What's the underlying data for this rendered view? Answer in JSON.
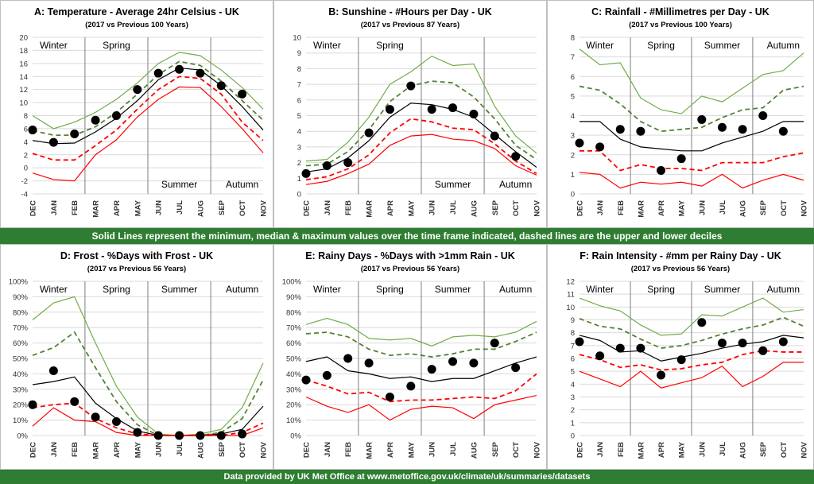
{
  "footer_note": "Solid Lines represent the minimum, median & maximum values over the time frame indicated, dashed lines are the upper and lower deciles",
  "source_note": "Data provided by UK Met Office at www.metoffice.gov.uk/climate/uk/summaries/datasets",
  "colors": {
    "max": "#70ad47",
    "upper_decile": "#548235",
    "median": "#000000",
    "lower_decile": "#ff0000",
    "min": "#ff0000",
    "current": "#000000",
    "banner": "#2e7d32"
  },
  "chart_data": [
    {
      "id": "A",
      "type": "line",
      "title": "A: Temperature - Average 24hr Celsius - UK",
      "subtitle": "(2017 vs Previous 100 Years)",
      "categories": [
        "DEC",
        "JAN",
        "FEB",
        "MAR",
        "APR",
        "MAY",
        "JUN",
        "JUL",
        "AUG",
        "SEP",
        "OCT",
        "NOV"
      ],
      "ylim": [
        -4,
        20
      ],
      "yticks": [
        -4,
        -2,
        0,
        2,
        4,
        6,
        8,
        10,
        12,
        14,
        16,
        18,
        20
      ],
      "season_labels": [
        {
          "text": "Winter",
          "pos": "top"
        },
        {
          "text": "Spring",
          "pos": "top"
        },
        {
          "text": "Summer",
          "pos": "bottom"
        },
        {
          "text": "Autumn",
          "pos": "bottom"
        }
      ],
      "series": {
        "max": [
          8.0,
          6.0,
          7.0,
          8.5,
          10.5,
          13.0,
          16.0,
          17.7,
          17.2,
          15.0,
          12.3,
          9.0
        ],
        "upper_decile": [
          5.7,
          5.0,
          5.0,
          6.3,
          8.5,
          11.3,
          14.3,
          16.3,
          15.7,
          13.3,
          10.3,
          7.3
        ],
        "median": [
          4.2,
          3.7,
          3.8,
          5.5,
          7.6,
          10.3,
          13.5,
          15.3,
          15.0,
          12.6,
          9.4,
          5.8
        ],
        "lower_decile": [
          2.2,
          1.2,
          1.2,
          3.4,
          5.8,
          9.0,
          12.0,
          14.0,
          13.7,
          11.3,
          7.0,
          4.2
        ],
        "min": [
          -0.8,
          -1.8,
          -2.0,
          2.0,
          4.3,
          7.8,
          10.5,
          12.4,
          12.3,
          9.4,
          6.0,
          2.3
        ],
        "current": [
          5.8,
          3.9,
          5.2,
          7.3,
          8.0,
          12.0,
          14.5,
          15.1,
          14.5,
          12.6,
          11.3,
          null
        ]
      }
    },
    {
      "id": "B",
      "type": "line",
      "title": "B: Sunshine - #Hours per Day - UK",
      "subtitle": "(2017 vs Previous 87 Years)",
      "categories": [
        "DEC",
        "JAN",
        "FEB",
        "MAR",
        "APR",
        "MAY",
        "JUN",
        "JUL",
        "AUG",
        "SEP",
        "OCT",
        "NOV"
      ],
      "ylim": [
        0,
        10
      ],
      "yticks": [
        0,
        1,
        2,
        3,
        4,
        5,
        6,
        7,
        8,
        9,
        10
      ],
      "season_labels": [
        {
          "text": "Winter",
          "pos": "top"
        },
        {
          "text": "Spring",
          "pos": "top"
        },
        {
          "text": "Summer",
          "pos": "bottom"
        },
        {
          "text": "Autumn",
          "pos": "bottom"
        }
      ],
      "series": {
        "max": [
          2.1,
          2.2,
          3.3,
          4.9,
          7.0,
          7.8,
          8.8,
          8.2,
          8.3,
          5.6,
          3.7,
          2.6
        ],
        "upper_decile": [
          1.8,
          1.9,
          2.7,
          4.1,
          5.9,
          6.9,
          7.2,
          7.1,
          6.2,
          4.8,
          3.1,
          2.2
        ],
        "median": [
          1.4,
          1.6,
          2.3,
          3.4,
          4.9,
          5.8,
          5.7,
          5.4,
          4.9,
          3.8,
          2.7,
          1.7
        ],
        "lower_decile": [
          0.9,
          1.1,
          1.6,
          2.5,
          3.9,
          4.8,
          4.6,
          4.2,
          4.1,
          3.2,
          2.1,
          1.3
        ],
        "min": [
          0.6,
          0.8,
          1.3,
          1.9,
          3.1,
          3.7,
          3.8,
          3.5,
          3.4,
          2.9,
          1.8,
          1.2
        ],
        "current": [
          1.3,
          1.8,
          2.0,
          3.9,
          5.4,
          6.9,
          5.4,
          5.5,
          5.1,
          3.7,
          2.4,
          null
        ]
      }
    },
    {
      "id": "C",
      "type": "line",
      "title": "C: Rainfall - #Millimetres per Day - UK",
      "subtitle": "(2017 vs Previous 100 Years)",
      "categories": [
        "DEC",
        "JAN",
        "FEB",
        "MAR",
        "APR",
        "MAY",
        "JUN",
        "JUL",
        "AUG",
        "SEP",
        "OCT",
        "NOV"
      ],
      "ylim": [
        0,
        8
      ],
      "yticks": [
        0,
        1,
        2,
        3,
        4,
        5,
        6,
        7,
        8
      ],
      "season_labels": [
        {
          "text": "Winter",
          "pos": "top"
        },
        {
          "text": "Spring",
          "pos": "top"
        },
        {
          "text": "Summer",
          "pos": "top"
        },
        {
          "text": "Autumn",
          "pos": "top"
        }
      ],
      "series": {
        "max": [
          7.4,
          6.6,
          6.7,
          4.9,
          4.3,
          4.1,
          5.0,
          4.7,
          5.4,
          6.1,
          6.3,
          7.2
        ],
        "upper_decile": [
          5.5,
          5.3,
          4.6,
          3.7,
          3.2,
          3.3,
          3.4,
          3.9,
          4.3,
          4.4,
          5.3,
          5.5
        ],
        "median": [
          3.7,
          3.7,
          2.8,
          2.4,
          2.3,
          2.2,
          2.2,
          2.6,
          2.9,
          3.2,
          3.7,
          3.7
        ],
        "lower_decile": [
          2.2,
          2.2,
          1.2,
          1.5,
          1.3,
          1.3,
          1.2,
          1.6,
          1.6,
          1.6,
          1.9,
          2.1
        ],
        "min": [
          1.1,
          1.0,
          0.3,
          0.6,
          0.5,
          0.6,
          0.4,
          1.0,
          0.3,
          0.7,
          1.0,
          0.7
        ],
        "current": [
          2.6,
          2.4,
          3.3,
          3.2,
          1.2,
          1.8,
          3.8,
          3.4,
          3.3,
          4.0,
          3.2,
          null
        ]
      }
    },
    {
      "id": "D",
      "type": "line",
      "title": "D: Frost - %Days with Frost - UK",
      "subtitle": "(2017 vs Previous 56 Years)",
      "categories": [
        "DEC",
        "JAN",
        "FEB",
        "MAR",
        "APR",
        "MAY",
        "JUN",
        "JUL",
        "AUG",
        "SEP",
        "OCT",
        "NOV"
      ],
      "ylim": [
        0,
        100
      ],
      "ytick_suffix": "%",
      "yticks": [
        0,
        10,
        20,
        30,
        40,
        50,
        60,
        70,
        80,
        90,
        100
      ],
      "season_labels": [
        {
          "text": "Winter",
          "pos": "top"
        },
        {
          "text": "Spring",
          "pos": "top"
        },
        {
          "text": "Summer",
          "pos": "top"
        },
        {
          "text": "Autumn",
          "pos": "top"
        }
      ],
      "series": {
        "max": [
          75,
          86,
          90,
          60,
          32,
          12,
          1,
          0,
          1,
          4,
          18,
          47
        ],
        "upper_decile": [
          52,
          57,
          67,
          44,
          22,
          7,
          0,
          0,
          0,
          2,
          11,
          36
        ],
        "median": [
          33,
          35,
          38,
          21,
          11,
          3,
          0,
          0,
          0,
          1,
          4,
          19
        ],
        "lower_decile": [
          18,
          20,
          21,
          11,
          5,
          1,
          0,
          0,
          0,
          0,
          2,
          8
        ],
        "min": [
          6,
          18,
          10,
          9,
          2,
          0,
          0,
          0,
          0,
          0,
          0,
          5
        ],
        "current": [
          20,
          42,
          22,
          12,
          9,
          2,
          0,
          0,
          0,
          0,
          1,
          null
        ]
      }
    },
    {
      "id": "E",
      "type": "line",
      "title": "E: Rainy Days - %Days with >1mm Rain - UK",
      "subtitle": "(2017 vs Previous 56 Years)",
      "categories": [
        "DEC",
        "JAN",
        "FEB",
        "MAR",
        "APR",
        "MAY",
        "JUN",
        "JUL",
        "AUG",
        "SEP",
        "OCT",
        "NOV"
      ],
      "ylim": [
        0,
        100
      ],
      "ytick_suffix": "%",
      "yticks": [
        0,
        10,
        20,
        30,
        40,
        50,
        60,
        70,
        80,
        90,
        100
      ],
      "season_labels": [
        {
          "text": "Winter",
          "pos": "top"
        },
        {
          "text": "Spring",
          "pos": "top"
        },
        {
          "text": "Summer",
          "pos": "top"
        },
        {
          "text": "Autumn",
          "pos": "top"
        }
      ],
      "series": {
        "max": [
          72,
          76,
          72,
          63,
          62,
          63,
          58,
          64,
          65,
          64,
          67,
          74
        ],
        "upper_decile": [
          66,
          67,
          64,
          56,
          52,
          53,
          51,
          53,
          56,
          56,
          61,
          67
        ],
        "median": [
          48,
          51,
          42,
          40,
          37,
          38,
          35,
          37,
          37,
          42,
          47,
          51
        ],
        "lower_decile": [
          36,
          32,
          27,
          28,
          22,
          23,
          23,
          24,
          25,
          24,
          29,
          40
        ],
        "min": [
          25,
          19,
          15,
          20,
          10,
          17,
          19,
          18,
          11,
          20,
          23,
          26
        ],
        "current": [
          36,
          39,
          50,
          47,
          25,
          32,
          43,
          48,
          47,
          60,
          44,
          null
        ]
      }
    },
    {
      "id": "F",
      "type": "line",
      "title": "F: Rain Intensity - #mm per Rainy Day - UK",
      "subtitle": "(2017 vs Previous 56 Years)",
      "categories": [
        "DEC",
        "JAN",
        "FEB",
        "MAR",
        "APR",
        "MAY",
        "JUN",
        "JUL",
        "AUG",
        "SEP",
        "OCT",
        "NOV"
      ],
      "ylim": [
        0,
        12
      ],
      "yticks": [
        0,
        1,
        2,
        3,
        4,
        5,
        6,
        7,
        8,
        9,
        10,
        11,
        12
      ],
      "season_labels": [
        {
          "text": "Winter",
          "pos": "top"
        },
        {
          "text": "Spring",
          "pos": "top"
        },
        {
          "text": "Summer",
          "pos": "top"
        },
        {
          "text": "Autumn",
          "pos": "top"
        }
      ],
      "series": {
        "max": [
          10.7,
          10.1,
          9.7,
          8.6,
          7.8,
          7.9,
          9.4,
          9.3,
          10.0,
          10.7,
          9.6,
          9.8
        ],
        "upper_decile": [
          9.1,
          8.5,
          8.3,
          7.5,
          6.8,
          7.0,
          7.4,
          7.9,
          8.3,
          8.6,
          9.2,
          8.5
        ],
        "median": [
          7.8,
          7.4,
          6.5,
          6.6,
          5.8,
          6.1,
          6.4,
          6.8,
          7.1,
          7.3,
          7.8,
          7.6
        ],
        "lower_decile": [
          6.3,
          5.9,
          5.3,
          5.5,
          5.1,
          5.2,
          5.5,
          5.7,
          6.3,
          6.6,
          6.5,
          6.5
        ],
        "min": [
          5.0,
          4.4,
          3.8,
          5.0,
          3.7,
          4.1,
          4.5,
          5.4,
          3.8,
          4.6,
          5.7,
          5.7
        ],
        "current": [
          7.3,
          6.2,
          6.8,
          6.8,
          4.7,
          5.9,
          8.8,
          7.2,
          7.2,
          6.6,
          7.3,
          null
        ]
      }
    }
  ]
}
